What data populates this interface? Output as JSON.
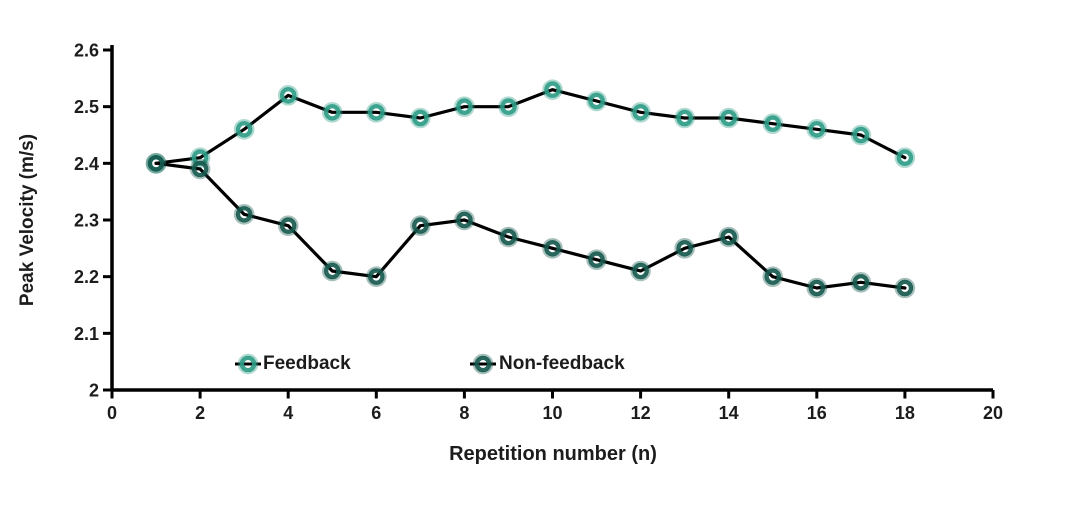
{
  "chart_data": {
    "type": "line",
    "title": "",
    "xlabel": "Repetition number (n)",
    "ylabel": "Peak Velocity (m/s)",
    "x": [
      1,
      2,
      3,
      4,
      5,
      6,
      7,
      8,
      9,
      10,
      11,
      12,
      13,
      14,
      15,
      16,
      17,
      18
    ],
    "series": [
      {
        "name": "Feedback",
        "color": "#2E9C86",
        "values": [
          2.4,
          2.41,
          2.46,
          2.52,
          2.49,
          2.49,
          2.48,
          2.5,
          2.5,
          2.53,
          2.51,
          2.49,
          2.48,
          2.48,
          2.47,
          2.46,
          2.45,
          2.41
        ]
      },
      {
        "name": "Non-feedback",
        "color": "#17594E",
        "values": [
          2.4,
          2.39,
          2.31,
          2.29,
          2.21,
          2.2,
          2.29,
          2.3,
          2.27,
          2.25,
          2.23,
          2.21,
          2.25,
          2.27,
          2.2,
          2.18,
          2.19,
          2.18
        ]
      }
    ],
    "xlim": [
      0,
      20
    ],
    "ylim": [
      2.0,
      2.6
    ],
    "xticks": [
      0,
      2,
      4,
      6,
      8,
      10,
      12,
      14,
      16,
      18,
      20
    ],
    "ytick_values": [
      2.6,
      2.5,
      2.4,
      2.3,
      2.2,
      2.1,
      2.0
    ],
    "ytick_labels": [
      "2.6",
      "2.5",
      "2.4",
      "2.3",
      "2.2",
      "2.1",
      "2"
    ],
    "grid": false,
    "line_color": "#000000",
    "axis_color": "#000000",
    "text_color": "#1c1c1c",
    "legend": {
      "position": "inside-bottom",
      "items": [
        {
          "label": "Feedback",
          "color": "#2E9C86"
        },
        {
          "label": "Non-feedback",
          "color": "#17594E"
        }
      ]
    }
  }
}
